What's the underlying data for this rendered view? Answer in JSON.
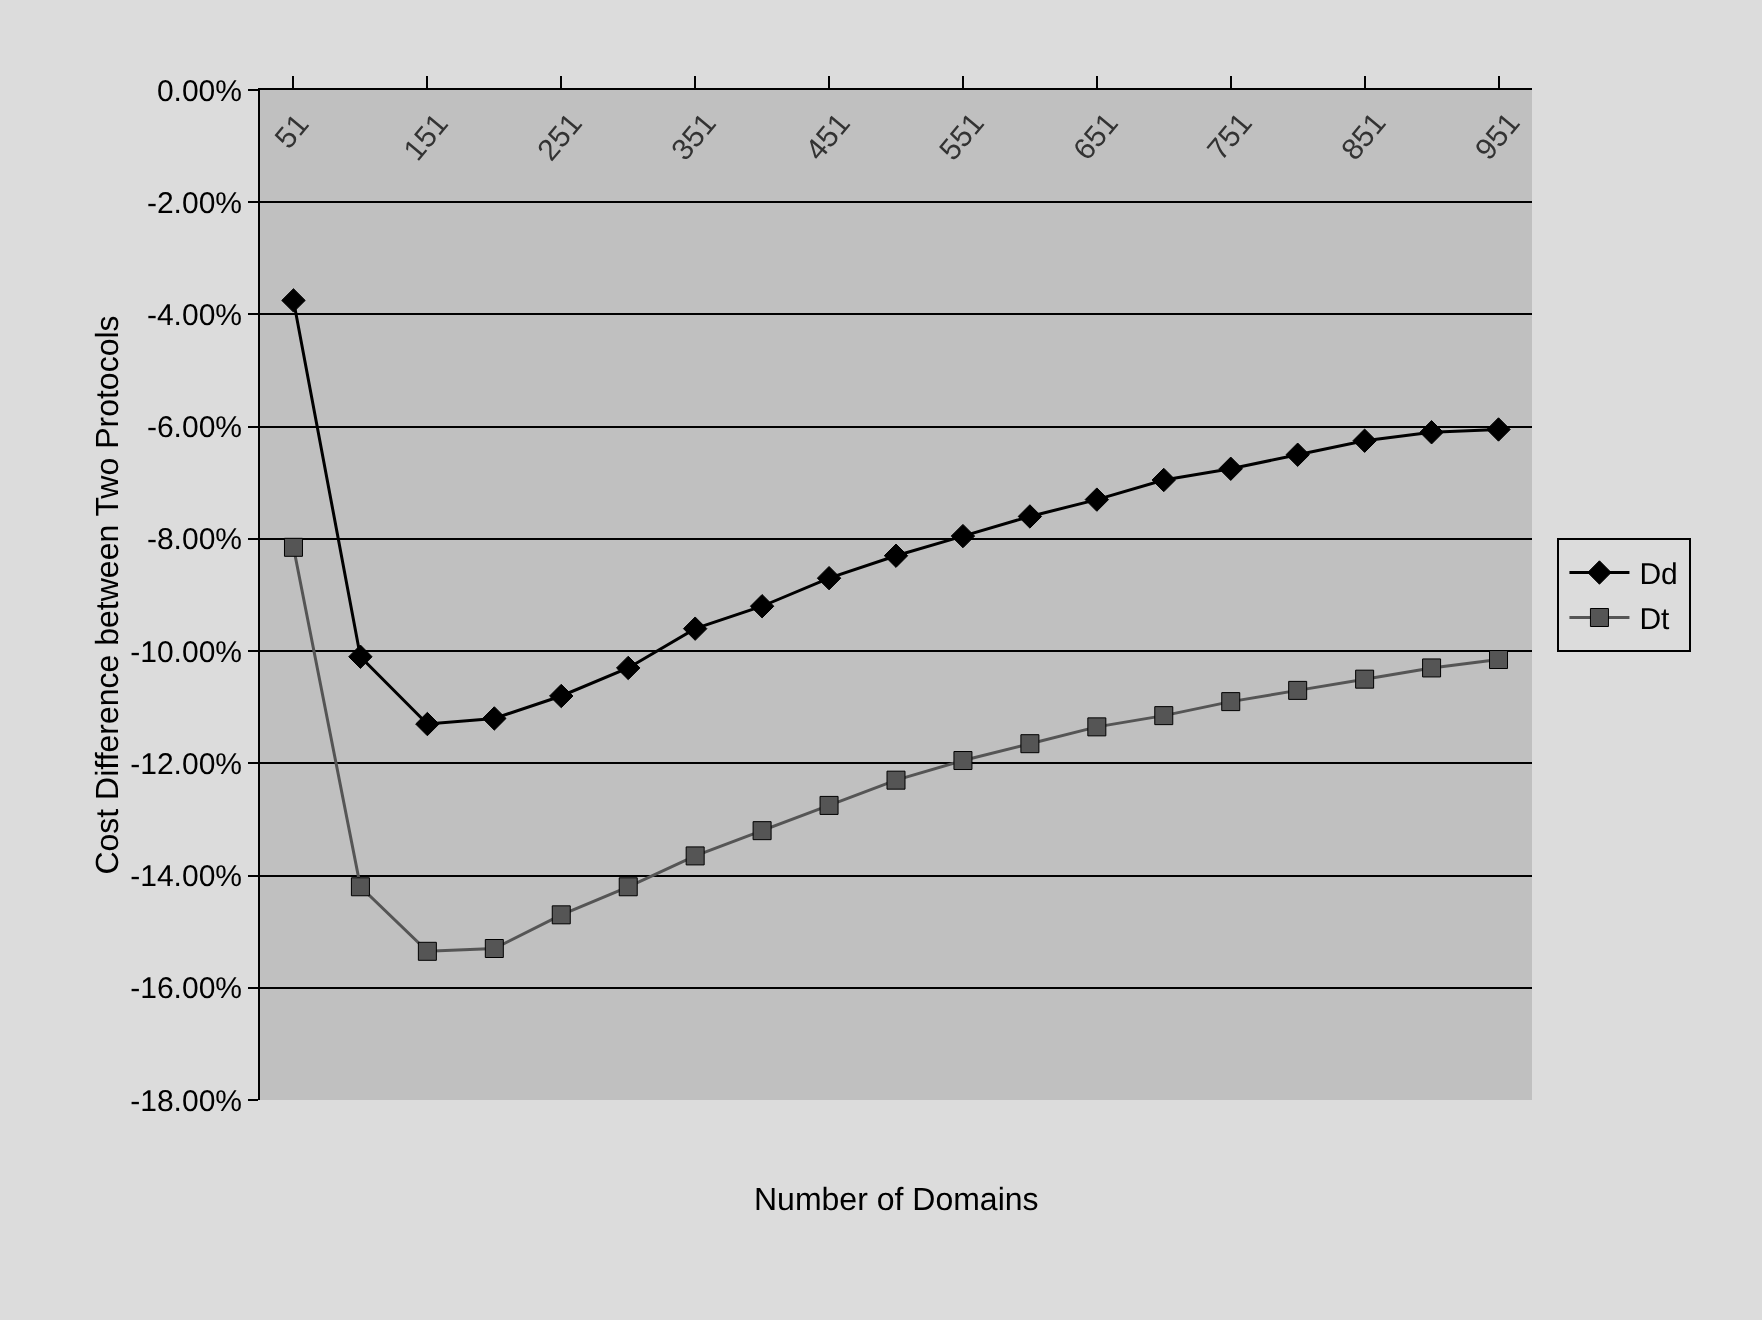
{
  "chart_data": {
    "type": "line",
    "xlabel": "Number of Domains",
    "ylabel": "Cost Difference between Two Protocols",
    "categories": [
      "51",
      null,
      "151",
      null,
      "251",
      null,
      "351",
      null,
      "451",
      null,
      "551",
      null,
      "651",
      null,
      "751",
      null,
      "851",
      null,
      "951"
    ],
    "series": [
      {
        "name": "Dd",
        "color": "#000000",
        "marker": "diamond",
        "values": [
          -3.75,
          -10.1,
          -11.3,
          -11.2,
          -10.8,
          -10.3,
          -9.6,
          -9.2,
          -8.7,
          -8.3,
          -7.95,
          -7.6,
          -7.3,
          -6.95,
          -6.75,
          -6.5,
          -6.25,
          -6.1,
          -6.05
        ]
      },
      {
        "name": "Dt",
        "color": "#555555",
        "marker": "square",
        "values": [
          -8.15,
          -14.2,
          -15.35,
          -15.3,
          -14.7,
          -14.2,
          -13.65,
          -13.2,
          -12.75,
          -12.3,
          -11.95,
          -11.65,
          -11.35,
          -11.15,
          -10.9,
          -10.7,
          -10.5,
          -10.3,
          -10.15
        ]
      }
    ],
    "ylim": [
      -18,
      0
    ],
    "yticks": [
      {
        "value": 0,
        "label": "0.00%"
      },
      {
        "value": -2,
        "label": "-2.00%"
      },
      {
        "value": -4,
        "label": "-4.00%"
      },
      {
        "value": -6,
        "label": "-6.00%"
      },
      {
        "value": -8,
        "label": "-8.00%"
      },
      {
        "value": -10,
        "label": "-10.00%"
      },
      {
        "value": -12,
        "label": "-12.00%"
      },
      {
        "value": -14,
        "label": "-14.00%"
      },
      {
        "value": -16,
        "label": "-16.00%"
      },
      {
        "value": -18,
        "label": "-18.00%"
      }
    ],
    "grid": "y",
    "legend": "right"
  }
}
